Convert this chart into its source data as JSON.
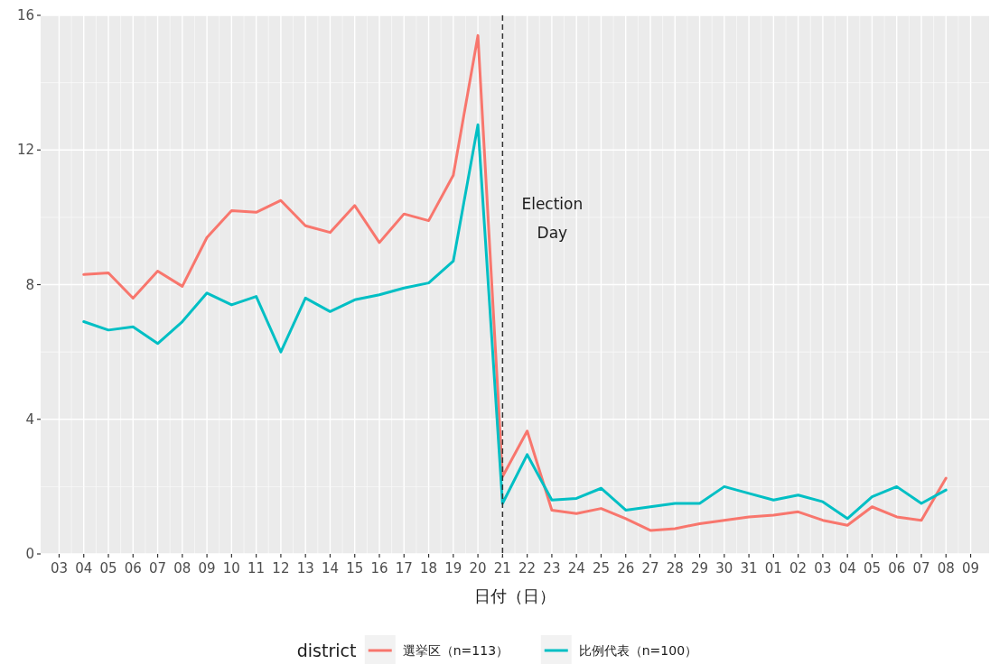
{
  "chart_data": {
    "type": "line",
    "xlabel": "日付（日）",
    "legend_title": "district",
    "legend": "bottom",
    "grid": true,
    "line_style": "solid",
    "marker": "none",
    "x": [
      "--10-04",
      "--10-05",
      "--10-06",
      "--10-07",
      "--10-08",
      "--10-09",
      "--10-10",
      "--10-11",
      "--10-12",
      "--10-13",
      "--10-14",
      "--10-15",
      "--10-16",
      "--10-17",
      "--10-18",
      "--10-19",
      "--10-20",
      "--10-21",
      "--10-22",
      "--10-23",
      "--10-24",
      "--10-25",
      "--10-26",
      "--10-27",
      "--10-28",
      "--10-29",
      "--10-30",
      "--10-31",
      "--11-01",
      "--11-02",
      "--11-03",
      "--11-04",
      "--11-05",
      "--11-06",
      "--11-07",
      "--11-08"
    ],
    "series": [
      {
        "name": "選挙区（n=113）",
        "color": "#f8766d",
        "values": [
          8.3,
          8.35,
          7.6,
          8.4,
          7.95,
          9.4,
          10.2,
          10.15,
          10.5,
          9.75,
          9.55,
          10.35,
          9.25,
          10.1,
          9.9,
          11.25,
          15.4,
          2.3,
          3.65,
          1.3,
          1.2,
          1.35,
          1.05,
          0.7,
          0.75,
          0.9,
          1.0,
          1.1,
          1.15,
          1.25,
          1.0,
          0.85,
          1.4,
          1.1,
          1.0,
          2.25
        ]
      },
      {
        "name": "比例代表（n=100）",
        "color": "#00bfc4",
        "values": [
          6.9,
          6.65,
          6.75,
          6.25,
          6.9,
          7.75,
          7.4,
          7.65,
          6.0,
          7.6,
          7.2,
          7.55,
          7.7,
          7.9,
          8.05,
          8.7,
          12.75,
          1.5,
          2.95,
          1.6,
          1.65,
          1.95,
          1.3,
          1.4,
          1.5,
          1.5,
          2.0,
          1.8,
          1.6,
          1.75,
          1.55,
          1.05,
          1.7,
          2.0,
          1.5,
          1.9
        ]
      }
    ],
    "xlim": [
      "--10-02T06:00",
      "--11-09T18:00"
    ],
    "xticks": [
      {
        "value": "--10-03",
        "label": "03"
      },
      {
        "value": "--10-04",
        "label": "04"
      },
      {
        "value": "--10-05",
        "label": "05"
      },
      {
        "value": "--10-06",
        "label": "06"
      },
      {
        "value": "--10-07",
        "label": "07"
      },
      {
        "value": "--10-08",
        "label": "08"
      },
      {
        "value": "--10-09",
        "label": "09"
      },
      {
        "value": "--10-10",
        "label": "10"
      },
      {
        "value": "--10-11",
        "label": "11"
      },
      {
        "value": "--10-12",
        "label": "12"
      },
      {
        "value": "--10-13",
        "label": "13"
      },
      {
        "value": "--10-14",
        "label": "14"
      },
      {
        "value": "--10-15",
        "label": "15"
      },
      {
        "value": "--10-16",
        "label": "16"
      },
      {
        "value": "--10-17",
        "label": "17"
      },
      {
        "value": "--10-18",
        "label": "18"
      },
      {
        "value": "--10-19",
        "label": "19"
      },
      {
        "value": "--10-20",
        "label": "20"
      },
      {
        "value": "--10-21",
        "label": "21"
      },
      {
        "value": "--10-22",
        "label": "22"
      },
      {
        "value": "--10-23",
        "label": "23"
      },
      {
        "value": "--10-24",
        "label": "24"
      },
      {
        "value": "--10-25",
        "label": "25"
      },
      {
        "value": "--10-26",
        "label": "26"
      },
      {
        "value": "--10-27",
        "label": "27"
      },
      {
        "value": "--10-28",
        "label": "28"
      },
      {
        "value": "--10-29",
        "label": "29"
      },
      {
        "value": "--10-30",
        "label": "30"
      },
      {
        "value": "--10-31",
        "label": "31"
      },
      {
        "value": "--11-01",
        "label": "01"
      },
      {
        "value": "--11-02",
        "label": "02"
      },
      {
        "value": "--11-03",
        "label": "03"
      },
      {
        "value": "--11-04",
        "label": "04"
      },
      {
        "value": "--11-05",
        "label": "05"
      },
      {
        "value": "--11-06",
        "label": "06"
      },
      {
        "value": "--11-07",
        "label": "07"
      },
      {
        "value": "--11-08",
        "label": "08"
      },
      {
        "value": "--11-09",
        "label": "09"
      }
    ],
    "ylim": [
      0,
      16
    ],
    "yticks": [
      0,
      4,
      8,
      12,
      16
    ],
    "ref_lines": [
      {
        "axis": "x",
        "value": "--10-21",
        "color": "#333333",
        "line_style": "dashed",
        "label": "Election\nDay"
      }
    ]
  }
}
